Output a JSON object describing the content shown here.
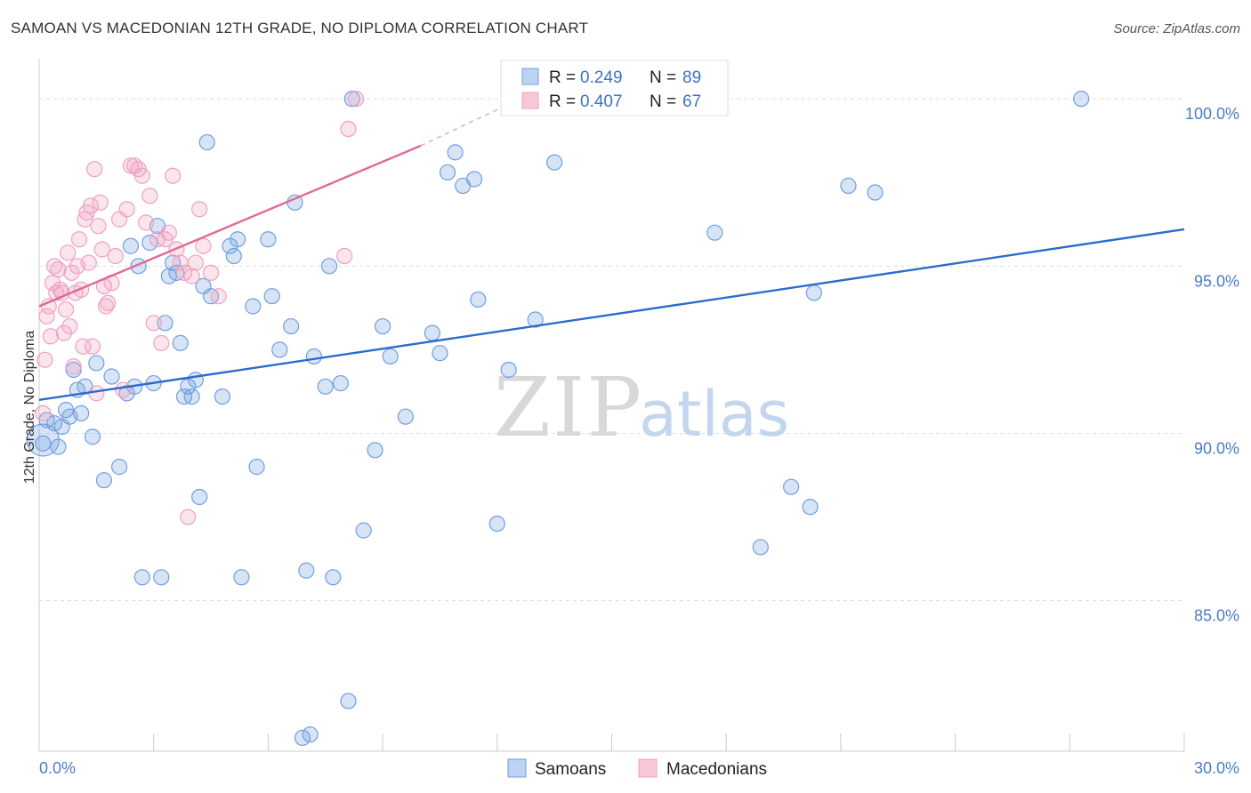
{
  "title": "SAMOAN VS MACEDONIAN 12TH GRADE, NO DIPLOMA CORRELATION CHART",
  "source": "Source: ZipAtlas.com",
  "watermark": {
    "zip": "ZIP",
    "atlas": "atlas"
  },
  "legend_top": [
    {
      "r_label": "R = ",
      "r_value": "0.249",
      "n_label": "N = ",
      "n_value": "89"
    },
    {
      "r_label": "R = ",
      "r_value": "0.407",
      "n_label": "N = ",
      "n_value": "67"
    }
  ],
  "legend_bottom": [
    "Samoans",
    "Macedonians"
  ],
  "chart_data": {
    "type": "scatter",
    "ylabel": "12th Grade, No Diploma",
    "xlabel": "",
    "xlim": [
      0,
      30
    ],
    "ylim": [
      80.5,
      101.2
    ],
    "x_tick_labels": [
      {
        "value": 0,
        "label": "0.0%"
      },
      {
        "value": 30,
        "label": "30.0%"
      }
    ],
    "y_tick_labels": [
      {
        "value": 100,
        "label": "100.0%"
      },
      {
        "value": 95,
        "label": "95.0%"
      },
      {
        "value": 90,
        "label": "90.0%"
      },
      {
        "value": 85,
        "label": "85.0%"
      }
    ],
    "grid": true,
    "legend_placement": "top-center",
    "series": [
      {
        "name": "Samoans",
        "color": "#6f9fe0",
        "line_color": "#2b6ccc",
        "trend": {
          "x": [
            0,
            30
          ],
          "y": [
            91.0,
            96.1
          ]
        },
        "points": [
          [
            0.1,
            89.7
          ],
          [
            0.2,
            90.4
          ],
          [
            0.4,
            90.3
          ],
          [
            0.5,
            89.6
          ],
          [
            0.6,
            90.2
          ],
          [
            0.7,
            90.7
          ],
          [
            0.8,
            90.5
          ],
          [
            0.9,
            91.9
          ],
          [
            1.0,
            91.3
          ],
          [
            1.1,
            90.6
          ],
          [
            1.2,
            91.4
          ],
          [
            1.4,
            89.9
          ],
          [
            1.5,
            92.1
          ],
          [
            1.7,
            88.6
          ],
          [
            1.9,
            91.7
          ],
          [
            2.1,
            89.0
          ],
          [
            2.3,
            91.2
          ],
          [
            2.4,
            95.6
          ],
          [
            2.5,
            91.4
          ],
          [
            2.6,
            95.0
          ],
          [
            2.7,
            85.7
          ],
          [
            2.9,
            95.7
          ],
          [
            3.0,
            91.5
          ],
          [
            3.1,
            96.2
          ],
          [
            3.2,
            85.7
          ],
          [
            3.3,
            93.3
          ],
          [
            3.4,
            94.7
          ],
          [
            3.5,
            95.1
          ],
          [
            3.6,
            94.8
          ],
          [
            3.7,
            92.7
          ],
          [
            3.8,
            91.1
          ],
          [
            3.9,
            91.4
          ],
          [
            4.0,
            91.1
          ],
          [
            4.1,
            91.6
          ],
          [
            4.2,
            88.1
          ],
          [
            4.3,
            94.4
          ],
          [
            4.4,
            98.7
          ],
          [
            4.5,
            94.1
          ],
          [
            4.8,
            91.1
          ],
          [
            5.0,
            95.6
          ],
          [
            5.1,
            95.3
          ],
          [
            5.2,
            95.8
          ],
          [
            5.3,
            85.7
          ],
          [
            5.6,
            93.8
          ],
          [
            5.7,
            89.0
          ],
          [
            6.0,
            95.8
          ],
          [
            6.1,
            94.1
          ],
          [
            6.3,
            92.5
          ],
          [
            6.6,
            93.2
          ],
          [
            6.7,
            96.9
          ],
          [
            6.9,
            80.9
          ],
          [
            7.0,
            85.9
          ],
          [
            7.1,
            81.0
          ],
          [
            7.2,
            92.3
          ],
          [
            7.5,
            91.4
          ],
          [
            7.6,
            95.0
          ],
          [
            7.7,
            85.7
          ],
          [
            7.9,
            91.5
          ],
          [
            8.1,
            82.0
          ],
          [
            8.2,
            100.0
          ],
          [
            8.5,
            87.1
          ],
          [
            8.8,
            89.5
          ],
          [
            9.0,
            93.2
          ],
          [
            9.2,
            92.3
          ],
          [
            9.6,
            90.5
          ],
          [
            10.3,
            93.0
          ],
          [
            10.5,
            92.4
          ],
          [
            10.7,
            97.8
          ],
          [
            10.9,
            98.4
          ],
          [
            11.1,
            97.4
          ],
          [
            11.4,
            97.6
          ],
          [
            11.5,
            94.0
          ],
          [
            12.0,
            87.3
          ],
          [
            12.3,
            91.9
          ],
          [
            13.0,
            93.4
          ],
          [
            13.5,
            98.1
          ],
          [
            14.7,
            100.0
          ],
          [
            17.7,
            96.0
          ],
          [
            18.9,
            86.6
          ],
          [
            19.7,
            88.4
          ],
          [
            20.2,
            87.8
          ],
          [
            20.3,
            94.2
          ],
          [
            21.2,
            97.4
          ],
          [
            21.9,
            97.2
          ],
          [
            27.3,
            100.0
          ]
        ]
      },
      {
        "name": "Macedonians",
        "color": "#f0a0bf",
        "line_color": "#e06a96",
        "trend": {
          "x": [
            0,
            10
          ],
          "y": [
            93.8,
            98.6
          ]
        },
        "trend_dashed": {
          "x": [
            10,
            12.6
          ],
          "y": [
            98.6,
            100.0
          ]
        },
        "points": [
          [
            0.1,
            90.6
          ],
          [
            0.15,
            92.2
          ],
          [
            0.2,
            93.5
          ],
          [
            0.25,
            93.8
          ],
          [
            0.3,
            92.9
          ],
          [
            0.35,
            94.5
          ],
          [
            0.4,
            95.0
          ],
          [
            0.45,
            94.2
          ],
          [
            0.5,
            94.9
          ],
          [
            0.55,
            94.3
          ],
          [
            0.6,
            94.2
          ],
          [
            0.65,
            93.0
          ],
          [
            0.7,
            93.7
          ],
          [
            0.75,
            95.4
          ],
          [
            0.8,
            93.2
          ],
          [
            0.85,
            94.8
          ],
          [
            0.9,
            92.0
          ],
          [
            0.95,
            94.2
          ],
          [
            1.0,
            95.0
          ],
          [
            1.05,
            95.8
          ],
          [
            1.1,
            94.3
          ],
          [
            1.15,
            92.6
          ],
          [
            1.2,
            96.4
          ],
          [
            1.25,
            96.6
          ],
          [
            1.3,
            95.1
          ],
          [
            1.35,
            96.8
          ],
          [
            1.4,
            92.6
          ],
          [
            1.45,
            97.9
          ],
          [
            1.5,
            91.2
          ],
          [
            1.55,
            96.2
          ],
          [
            1.6,
            96.9
          ],
          [
            1.65,
            95.5
          ],
          [
            1.7,
            94.4
          ],
          [
            1.75,
            93.8
          ],
          [
            1.8,
            93.9
          ],
          [
            1.9,
            94.5
          ],
          [
            2.0,
            95.3
          ],
          [
            2.1,
            96.4
          ],
          [
            2.2,
            91.3
          ],
          [
            2.3,
            96.7
          ],
          [
            2.4,
            98.0
          ],
          [
            2.5,
            98.0
          ],
          [
            2.6,
            97.9
          ],
          [
            2.7,
            97.7
          ],
          [
            2.8,
            96.3
          ],
          [
            2.9,
            97.1
          ],
          [
            3.0,
            93.3
          ],
          [
            3.1,
            95.8
          ],
          [
            3.2,
            92.7
          ],
          [
            3.3,
            95.8
          ],
          [
            3.4,
            96.0
          ],
          [
            3.5,
            97.7
          ],
          [
            3.6,
            95.5
          ],
          [
            3.7,
            95.1
          ],
          [
            3.8,
            94.8
          ],
          [
            3.9,
            87.5
          ],
          [
            4.0,
            94.7
          ],
          [
            4.1,
            95.1
          ],
          [
            4.2,
            96.7
          ],
          [
            4.3,
            95.6
          ],
          [
            4.5,
            94.8
          ],
          [
            4.7,
            94.1
          ],
          [
            8.0,
            95.3
          ],
          [
            8.1,
            99.1
          ],
          [
            8.3,
            100.0
          ]
        ]
      }
    ]
  }
}
